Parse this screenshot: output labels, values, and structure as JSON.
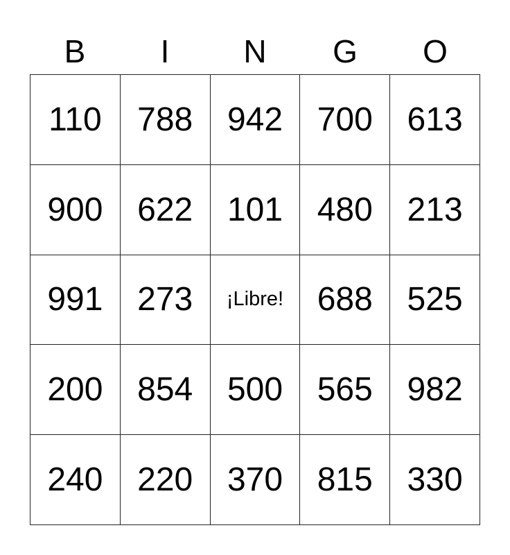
{
  "header": [
    "B",
    "I",
    "N",
    "G",
    "O"
  ],
  "rows": [
    [
      "110",
      "788",
      "942",
      "700",
      "613"
    ],
    [
      "900",
      "622",
      "101",
      "480",
      "213"
    ],
    [
      "991",
      "273",
      "¡Libre!",
      "688",
      "525"
    ],
    [
      "200",
      "854",
      "500",
      "565",
      "982"
    ],
    [
      "240",
      "220",
      "370",
      "815",
      "330"
    ]
  ]
}
